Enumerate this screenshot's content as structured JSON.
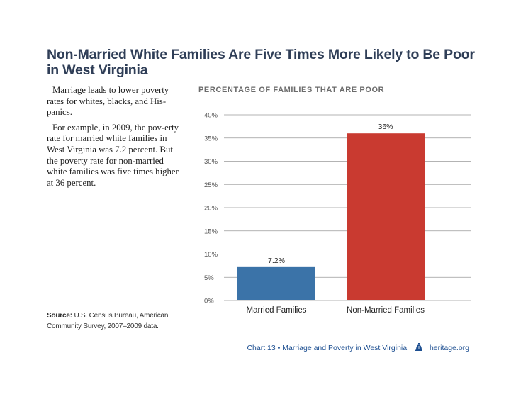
{
  "title": "Non-Married White Families Are Five Times More Likely to Be Poor in West Virginia",
  "intro": {
    "p1": "Marriage leads to lower poverty rates for whites, blacks, and His-panics.",
    "p2": "For example, in 2009, the pov-erty rate for married white families in West Virginia was 7.2 percent. But the poverty rate for non-married white families was five times higher at 36 percent."
  },
  "source": {
    "label": "Source:",
    "text": "U.S. Census Bureau, American Community Survey, 2007–2009 data."
  },
  "footer": {
    "chart_ref": "Chart 13 • Marriage and Poverty in West Virginia",
    "site": "heritage.org"
  },
  "colors": {
    "married": "#3b73a8",
    "non_married": "#c93a30",
    "title": "#2f3e57",
    "footer": "#1d4f91"
  },
  "chart_data": {
    "type": "bar",
    "title": "PERCENTAGE OF FAMILIES THAT ARE POOR",
    "categories": [
      "Married Families",
      "Non-Married Families"
    ],
    "values": [
      7.2,
      36
    ],
    "value_labels": [
      "7.2%",
      "36%"
    ],
    "ylim": [
      0,
      40
    ],
    "yticks": [
      0,
      5,
      10,
      15,
      20,
      25,
      30,
      35,
      40
    ],
    "ytick_labels": [
      "0%",
      "5%",
      "10%",
      "15%",
      "20%",
      "25%",
      "30%",
      "35%",
      "40%"
    ],
    "grid": true,
    "xlabel": "",
    "ylabel": ""
  }
}
